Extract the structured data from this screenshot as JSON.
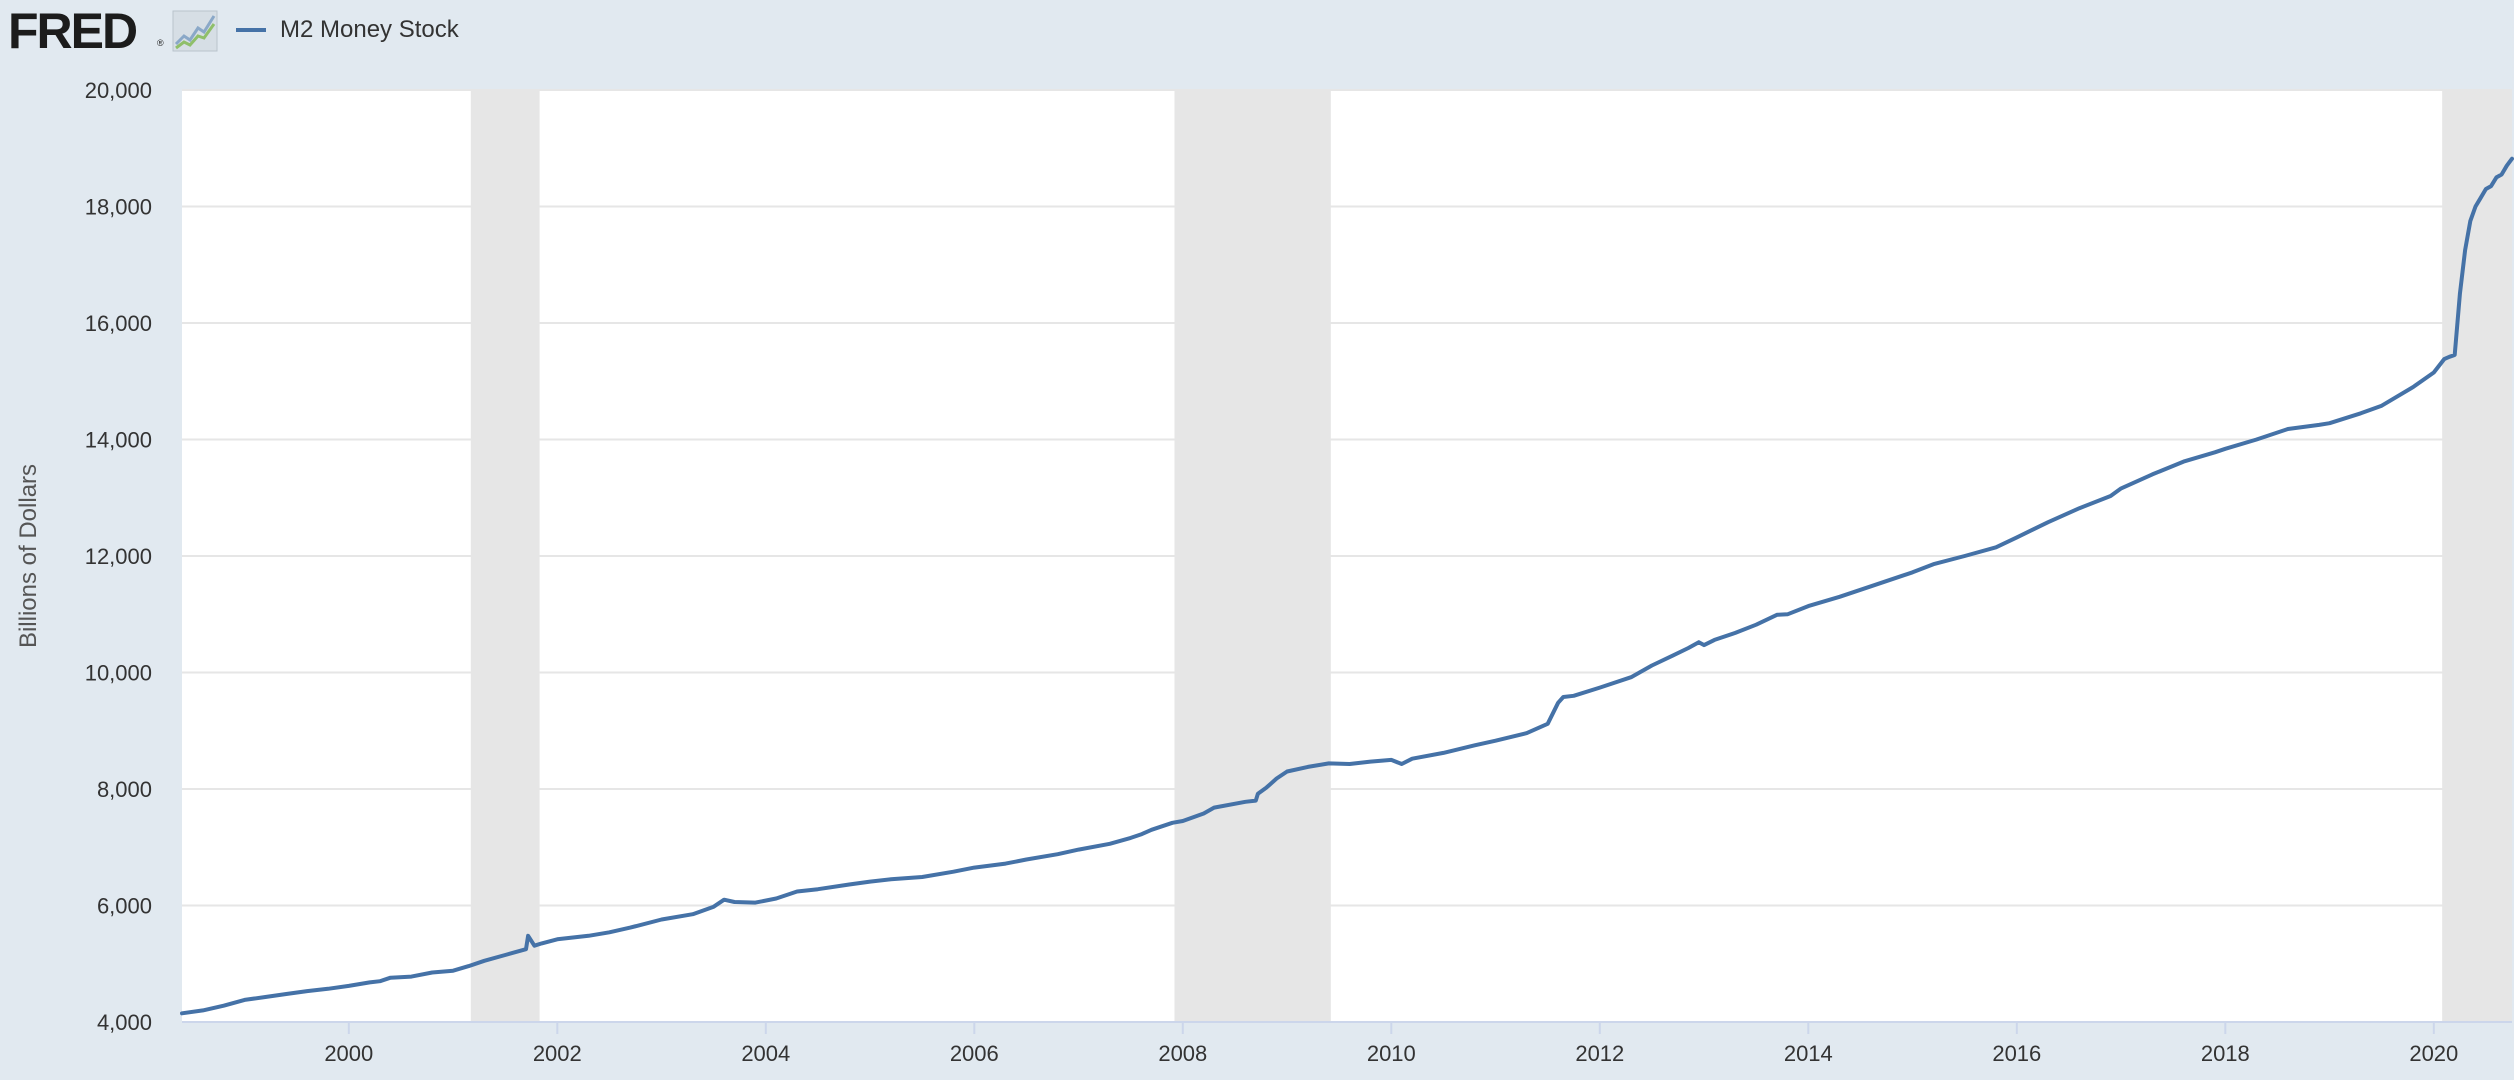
{
  "header": {
    "logo_text": "FRED",
    "logo_reg": "®",
    "legend_label": "M2 Money Stock"
  },
  "colors": {
    "background": "#e1e9f0",
    "plot_background": "#ffffff",
    "series_line": "#4572a7",
    "recession_shade": "#e6e6e6",
    "gridline": "#e6e6e6",
    "axis_text": "#333333"
  },
  "chart_data": {
    "type": "line",
    "title": "",
    "xlabel": "",
    "ylabel": "Billions of Dollars",
    "xlim": [
      1998.4,
      2020.75
    ],
    "ylim": [
      4000,
      20000
    ],
    "grid": true,
    "legend": "top-left",
    "yticks": [
      4000,
      6000,
      8000,
      10000,
      12000,
      14000,
      16000,
      18000,
      20000
    ],
    "ytick_labels": [
      "4,000",
      "6,000",
      "8,000",
      "10,000",
      "12,000",
      "14,000",
      "16,000",
      "18,000",
      "20,000"
    ],
    "xticks": [
      2000,
      2002,
      2004,
      2006,
      2008,
      2010,
      2012,
      2014,
      2016,
      2018,
      2020
    ],
    "xtick_labels": [
      "2000",
      "2002",
      "2004",
      "2006",
      "2008",
      "2010",
      "2012",
      "2014",
      "2016",
      "2018",
      "2020"
    ],
    "recessions": [
      {
        "start": 2001.17,
        "end": 2001.83
      },
      {
        "start": 2007.92,
        "end": 2009.42
      },
      {
        "start": 2020.08,
        "end": 2020.75
      }
    ],
    "series": [
      {
        "name": "M2 Money Stock",
        "x": [
          1998.4,
          1998.6,
          1998.8,
          1999.0,
          1999.2,
          1999.4,
          1999.6,
          1999.8,
          2000.0,
          2000.2,
          2000.3,
          2000.4,
          2000.6,
          2000.8,
          2001.0,
          2001.15,
          2001.3,
          2001.5,
          2001.6,
          2001.7,
          2001.72,
          2001.78,
          2001.85,
          2002.0,
          2002.3,
          2002.5,
          2002.7,
          2003.0,
          2003.3,
          2003.5,
          2003.6,
          2003.7,
          2003.9,
          2004.1,
          2004.3,
          2004.5,
          2004.8,
          2005.0,
          2005.2,
          2005.5,
          2005.8,
          2006.0,
          2006.3,
          2006.5,
          2006.8,
          2007.0,
          2007.3,
          2007.5,
          2007.6,
          2007.7,
          2007.9,
          2008.0,
          2008.2,
          2008.3,
          2008.6,
          2008.7,
          2008.72,
          2008.8,
          2008.9,
          2009.0,
          2009.2,
          2009.4,
          2009.6,
          2009.8,
          2010.0,
          2010.1,
          2010.2,
          2010.5,
          2010.8,
          2011.0,
          2011.3,
          2011.5,
          2011.6,
          2011.65,
          2011.75,
          2012.0,
          2012.3,
          2012.5,
          2012.7,
          2012.85,
          2012.95,
          2013.0,
          2013.1,
          2013.3,
          2013.5,
          2013.7,
          2013.8,
          2014.0,
          2014.3,
          2014.6,
          2014.9,
          2015.0,
          2015.2,
          2015.5,
          2015.8,
          2016.0,
          2016.3,
          2016.6,
          2016.9,
          2017.0,
          2017.3,
          2017.6,
          2017.9,
          2018.0,
          2018.3,
          2018.6,
          2018.9,
          2019.0,
          2019.3,
          2019.5,
          2019.8,
          2020.0,
          2020.1,
          2020.15,
          2020.2,
          2020.25,
          2020.3,
          2020.35,
          2020.4,
          2020.45,
          2020.5,
          2020.55,
          2020.6,
          2020.65,
          2020.7,
          2020.75
        ],
        "values": [
          4150,
          4200,
          4280,
          4380,
          4430,
          4480,
          4530,
          4570,
          4620,
          4680,
          4700,
          4760,
          4780,
          4850,
          4880,
          4960,
          5050,
          5150,
          5200,
          5250,
          5480,
          5310,
          5350,
          5420,
          5480,
          5540,
          5620,
          5760,
          5850,
          5980,
          6100,
          6060,
          6050,
          6120,
          6240,
          6280,
          6360,
          6410,
          6450,
          6490,
          6580,
          6650,
          6720,
          6790,
          6880,
          6960,
          7060,
          7160,
          7220,
          7300,
          7420,
          7450,
          7580,
          7680,
          7780,
          7800,
          7920,
          8020,
          8180,
          8300,
          8380,
          8440,
          8430,
          8470,
          8500,
          8430,
          8520,
          8620,
          8750,
          8830,
          8960,
          9120,
          9480,
          9580,
          9600,
          9740,
          9920,
          10120,
          10290,
          10420,
          10520,
          10470,
          10560,
          10680,
          10820,
          10990,
          11000,
          11140,
          11300,
          11480,
          11660,
          11720,
          11860,
          12000,
          12150,
          12320,
          12580,
          12820,
          13030,
          13160,
          13400,
          13620,
          13780,
          13840,
          14000,
          14180,
          14250,
          14280,
          14450,
          14580,
          14900,
          15150,
          15380,
          15420,
          15450,
          16500,
          17250,
          17750,
          18000,
          18150,
          18300,
          18350,
          18500,
          18550,
          18700,
          18820
        ]
      }
    ]
  }
}
